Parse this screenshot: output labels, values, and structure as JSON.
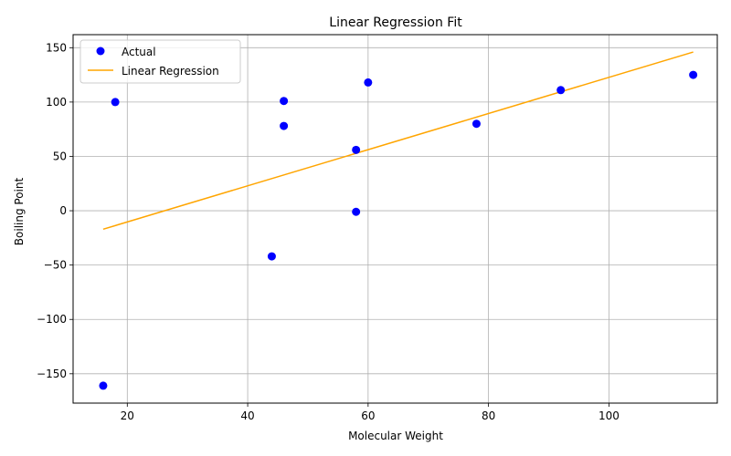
{
  "chart_data": {
    "type": "scatter",
    "title": "Linear Regression Fit",
    "xlabel": "Molecular Weight",
    "ylabel": "Boiling Point",
    "xlim": [
      11,
      118
    ],
    "ylim": [
      -177,
      162
    ],
    "xticks": [
      20,
      40,
      60,
      80,
      100
    ],
    "yticks": [
      -150,
      -100,
      -50,
      0,
      50,
      100,
      150
    ],
    "xtick_labels": [
      "20",
      "40",
      "60",
      "80",
      "100"
    ],
    "ytick_labels": [
      "−150",
      "−100",
      "−50",
      "0",
      "50",
      "100",
      "150"
    ],
    "grid": true,
    "legend_position": "top-left",
    "series": [
      {
        "name": "Actual",
        "kind": "scatter",
        "color": "#0000ff",
        "x": [
          16,
          18,
          44,
          46,
          46,
          58,
          58,
          60,
          78,
          92,
          114
        ],
        "y": [
          -161,
          100,
          -42,
          101,
          78,
          56,
          -1,
          118,
          80,
          111,
          125
        ]
      },
      {
        "name": "Linear Regression",
        "kind": "line",
        "color": "#ffa500",
        "x": [
          16,
          114
        ],
        "y": [
          -17,
          146
        ]
      }
    ]
  }
}
